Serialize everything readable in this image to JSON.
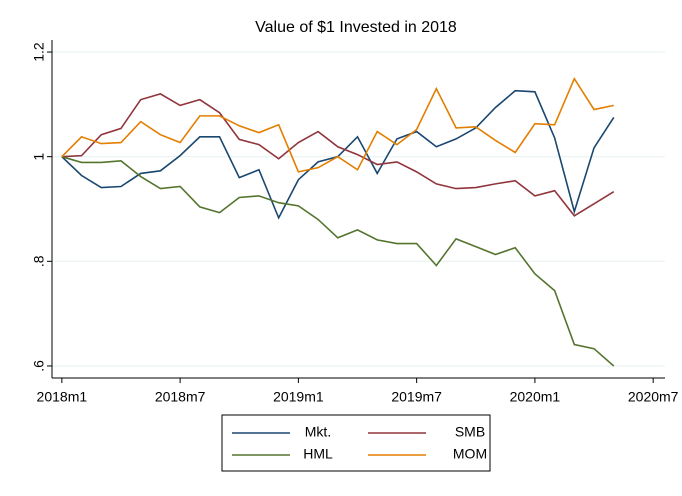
{
  "chart_data": {
    "type": "line",
    "title": "Value of $1 Invested in 2018",
    "x": [
      696,
      697,
      698,
      699,
      700,
      701,
      702,
      703,
      704,
      705,
      706,
      707,
      708,
      709,
      710,
      711,
      712,
      713,
      714,
      715,
      716,
      717,
      718,
      719,
      720,
      721,
      722,
      723,
      724
    ],
    "xlim": [
      695.5,
      726.6
    ],
    "xticks": [
      {
        "value": 696,
        "label": "2018m1"
      },
      {
        "value": 702,
        "label": "2018m7"
      },
      {
        "value": 708,
        "label": "2019m1"
      },
      {
        "value": 714,
        "label": "2019m7"
      },
      {
        "value": 720,
        "label": "2020m1"
      },
      {
        "value": 726,
        "label": "2020m7"
      }
    ],
    "ylim": [
      0.577,
      1.223
    ],
    "yticks": [
      {
        "value": 0.6,
        "label": ".6"
      },
      {
        "value": 0.8,
        "label": ".8"
      },
      1,
      1.2
    ],
    "grid": true,
    "legend": "bottom",
    "series": [
      {
        "name": "Mkt.",
        "color": "#1a476f",
        "values": [
          1,
          0.964,
          0.941,
          0.943,
          0.968,
          0.973,
          1.002,
          1.038,
          1.038,
          0.96,
          0.975,
          0.883,
          0.956,
          0.99,
          1.0,
          1.038,
          0.968,
          1.034,
          1.048,
          1.019,
          1.034,
          1.055,
          1.094,
          1.126,
          1.124,
          1.036,
          0.895,
          1.017,
          1.075
        ]
      },
      {
        "name": "SMB",
        "color": "#90353b",
        "values": [
          1,
          1.002,
          1.042,
          1.054,
          1.109,
          1.12,
          1.098,
          1.109,
          1.084,
          1.033,
          1.023,
          0.996,
          1.027,
          1.048,
          1.019,
          1.004,
          0.985,
          0.99,
          0.971,
          0.948,
          0.939,
          0.941,
          0.948,
          0.954,
          0.925,
          0.935,
          0.887,
          0.91,
          0.933
        ]
      },
      {
        "name": "HML",
        "color": "#55752f",
        "values": [
          1,
          0.989,
          0.989,
          0.992,
          0.962,
          0.939,
          0.943,
          0.904,
          0.893,
          0.922,
          0.925,
          0.912,
          0.906,
          0.88,
          0.845,
          0.86,
          0.841,
          0.834,
          0.834,
          0.792,
          0.843,
          0.828,
          0.813,
          0.826,
          0.776,
          0.744,
          0.641,
          0.633,
          0.6
        ]
      },
      {
        "name": "MOM",
        "color": "#e37e00",
        "values": [
          1,
          1.038,
          1.025,
          1.027,
          1.067,
          1.042,
          1.027,
          1.078,
          1.078,
          1.059,
          1.046,
          1.061,
          0.971,
          0.979,
          1.0,
          0.975,
          1.048,
          1.023,
          1.052,
          1.13,
          1.055,
          1.057,
          1.031,
          1.008,
          1.063,
          1.061,
          1.149,
          1.09,
          1.098
        ]
      }
    ]
  }
}
